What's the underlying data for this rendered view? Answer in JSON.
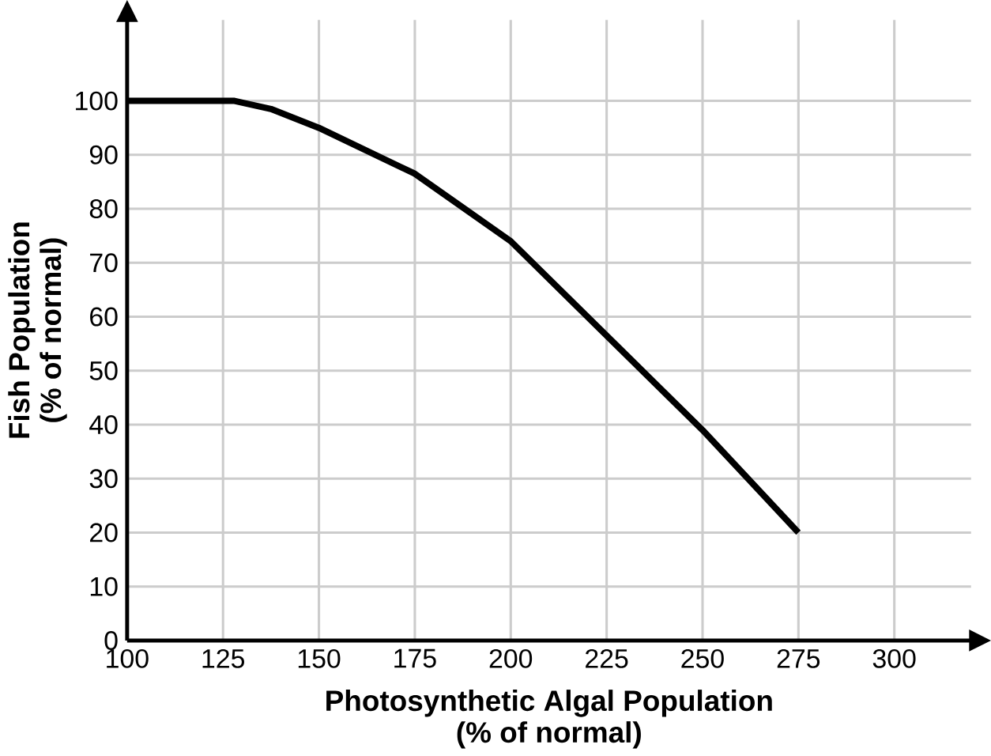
{
  "chart_data": {
    "type": "line",
    "xlabel": "Photosynthetic Algal Population\n(% of normal)",
    "ylabel": "Fish Population\n(% of normal)",
    "x": [
      100,
      128,
      137.5,
      150,
      175,
      200,
      225,
      250,
      275
    ],
    "series": [
      {
        "color": "#000000",
        "values": [
          100,
          100,
          98.5,
          95,
          86.5,
          74,
          56.5,
          39,
          20
        ]
      }
    ],
    "xlim": [
      100,
      320
    ],
    "ylim": [
      0,
      115
    ],
    "xticks": [
      100,
      125,
      150,
      175,
      200,
      225,
      250,
      275,
      300
    ],
    "yticks": [
      0,
      10,
      20,
      30,
      40,
      50,
      60,
      70,
      80,
      90,
      100
    ],
    "grid": true,
    "marker": "none",
    "line_style": "solid"
  }
}
